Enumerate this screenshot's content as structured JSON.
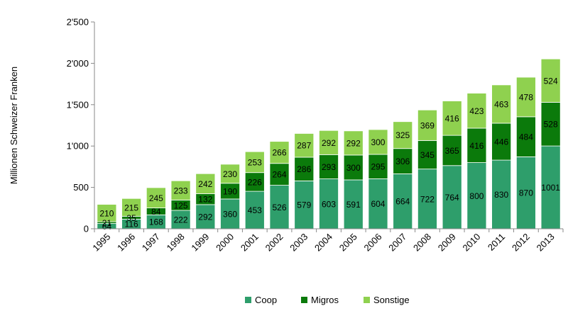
{
  "chart_data": {
    "type": "bar",
    "stacked": true,
    "ylabel": "Millionen Schweizer Franken",
    "ylim": [
      0,
      2500
    ],
    "yticks": [
      0,
      500,
      1000,
      1500,
      2000,
      2500
    ],
    "ytick_labels": [
      "0",
      "500",
      "1'000",
      "1'500",
      "2'000",
      "2'500"
    ],
    "grid": false,
    "legend_position": "bottom",
    "categories": [
      "1995",
      "1996",
      "1997",
      "1998",
      "1999",
      "2000",
      "2001",
      "2002",
      "2003",
      "2004",
      "2005",
      "2006",
      "2007",
      "2008",
      "2009",
      "2010",
      "2011",
      "2012",
      "2013"
    ],
    "series": [
      {
        "name": "Coop",
        "color": "#2e9e6b",
        "values": [
          64,
          116,
          168,
          222,
          292,
          360,
          453,
          526,
          579,
          603,
          591,
          604,
          664,
          722,
          764,
          800,
          830,
          870,
          1001
        ]
      },
      {
        "name": "Migros",
        "color": "#0b7a0b",
        "values": [
          21,
          35,
          84,
          125,
          132,
          190,
          226,
          264,
          286,
          293,
          300,
          295,
          306,
          345,
          365,
          416,
          446,
          484,
          528
        ]
      },
      {
        "name": "Sonstige",
        "color": "#8fd14f",
        "values": [
          210,
          215,
          245,
          233,
          242,
          230,
          253,
          266,
          287,
          292,
          292,
          300,
          325,
          369,
          416,
          423,
          463,
          478,
          524
        ]
      }
    ]
  }
}
